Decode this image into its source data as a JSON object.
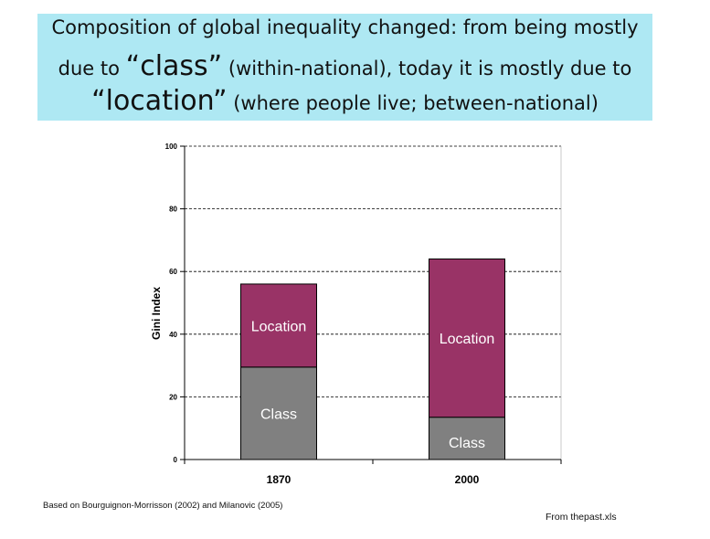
{
  "title": {
    "line1": "Composition of global inequality changed: from being mostly",
    "line2_pre": "due to ",
    "line2_word": "“class”",
    "line2_post": " (within-national), today it is mostly due to",
    "line3_word": "“location”",
    "line3_post": " (where people live; between-national)"
  },
  "chart_data": {
    "type": "bar",
    "stacked": true,
    "categories": [
      "1870",
      "2000"
    ],
    "series": [
      {
        "name": "Class",
        "values": [
          29.5,
          13.5
        ],
        "color": "#808080"
      },
      {
        "name": "Location",
        "values": [
          26.5,
          50.5
        ],
        "color": "#993366"
      }
    ],
    "ylabel": "Gini Index",
    "ylim": [
      0,
      100
    ],
    "yticks": [
      0,
      20,
      40,
      60,
      80,
      100
    ],
    "grid": true
  },
  "footer": {
    "source": "Based on Bourguignon-Morrisson (2002) and Milanovic (2005)",
    "file": "From thepast.xls"
  }
}
